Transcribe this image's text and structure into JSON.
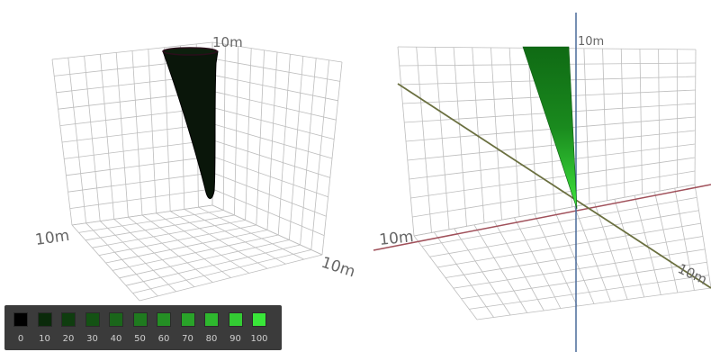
{
  "left_view": {
    "label_top": "10m",
    "label_left": "10m",
    "label_right": "10m"
  },
  "right_view": {
    "label_top": "10m",
    "label_left": "10m",
    "label_right": "10m"
  },
  "legend": {
    "items": [
      {
        "label": "0",
        "color": "#000000"
      },
      {
        "label": "10",
        "color": "#0a2a0a"
      },
      {
        "label": "20",
        "color": "#0f3d0f"
      },
      {
        "label": "30",
        "color": "#145214"
      },
      {
        "label": "40",
        "color": "#1a661a"
      },
      {
        "label": "50",
        "color": "#1f7a1f"
      },
      {
        "label": "60",
        "color": "#248f24"
      },
      {
        "label": "70",
        "color": "#29a329"
      },
      {
        "label": "80",
        "color": "#2eb82e"
      },
      {
        "label": "90",
        "color": "#33cc33"
      },
      {
        "label": "100",
        "color": "#39e639"
      }
    ]
  }
}
